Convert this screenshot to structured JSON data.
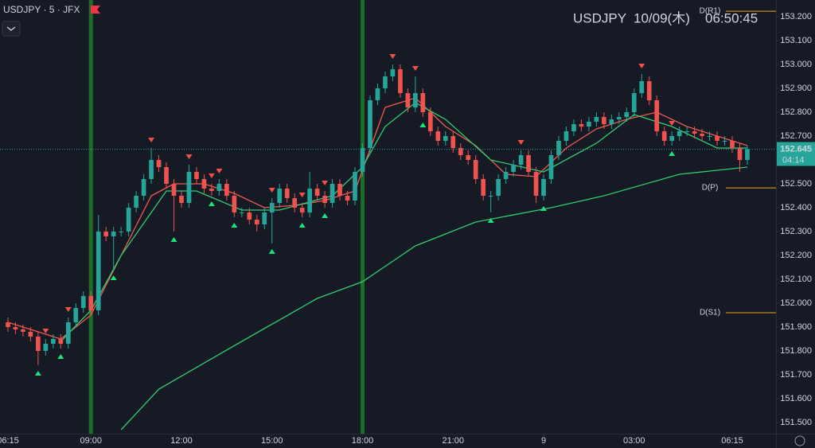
{
  "chart_data": {
    "type": "candlestick",
    "title": "USDJPY · 5 · JFX",
    "header": {
      "symbol": "USDJPY",
      "date": "10/09(木)",
      "time": "06:50:45"
    },
    "open": [
      151.92,
      151.9,
      151.89,
      151.88,
      151.86,
      151.8,
      151.83,
      151.85,
      151.83,
      151.92,
      151.98,
      152.03,
      151.97,
      152.3,
      152.28,
      152.3,
      152.3,
      152.4,
      152.45,
      152.52,
      152.6,
      152.57,
      152.5,
      152.45,
      152.42,
      152.55,
      152.52,
      152.48,
      152.47,
      152.5,
      152.45,
      152.38,
      152.38,
      152.35,
      152.33,
      152.38,
      152.42,
      152.48,
      152.44,
      152.4,
      152.38,
      152.48,
      152.45,
      152.42,
      152.5,
      152.45,
      152.43,
      152.55,
      152.65,
      152.85,
      152.9,
      152.95,
      152.98,
      152.88,
      152.82,
      152.88,
      152.8,
      152.72,
      152.68,
      152.7,
      152.65,
      152.62,
      152.6,
      152.52,
      152.45,
      152.45,
      152.52,
      152.55,
      152.58,
      152.62,
      152.55,
      152.45,
      152.52,
      152.62,
      152.68,
      152.72,
      152.75,
      152.74,
      152.76,
      152.78,
      152.75,
      152.77,
      152.78,
      152.8,
      152.88,
      152.93,
      152.85,
      152.72,
      152.68,
      152.7,
      152.72,
      152.72,
      152.71,
      152.7,
      152.7,
      152.68,
      152.68,
      152.65,
      152.6
    ],
    "high": [
      151.94,
      151.92,
      151.91,
      151.9,
      151.88,
      151.85,
      151.87,
      151.87,
      151.94,
      152.0,
      152.05,
      152.05,
      152.37,
      152.32,
      152.32,
      152.32,
      152.42,
      152.47,
      152.54,
      152.65,
      152.62,
      152.59,
      152.52,
      152.47,
      152.58,
      152.57,
      152.54,
      152.5,
      152.52,
      152.52,
      152.47,
      152.4,
      152.4,
      152.37,
      152.4,
      152.44,
      152.5,
      152.5,
      152.46,
      152.42,
      152.55,
      152.5,
      152.47,
      152.52,
      152.52,
      152.47,
      152.57,
      152.67,
      152.87,
      152.92,
      152.97,
      153.0,
      153.0,
      152.9,
      152.95,
      152.9,
      152.82,
      152.74,
      152.72,
      152.72,
      152.67,
      152.64,
      152.62,
      152.54,
      152.47,
      152.54,
      152.57,
      152.6,
      152.64,
      152.64,
      152.57,
      152.54,
      152.64,
      152.7,
      152.74,
      152.77,
      152.77,
      152.78,
      152.8,
      152.8,
      152.79,
      152.8,
      152.82,
      152.9,
      152.96,
      152.95,
      152.87,
      152.74,
      152.72,
      152.74,
      152.74,
      152.74,
      152.73,
      152.72,
      152.72,
      152.7,
      152.7,
      152.67,
      152.66
    ],
    "low": [
      151.88,
      151.87,
      151.86,
      151.84,
      151.74,
      151.78,
      151.81,
      151.81,
      151.81,
      151.9,
      151.96,
      151.95,
      151.95,
      152.26,
      152.14,
      152.28,
      152.28,
      152.38,
      152.43,
      152.5,
      152.55,
      152.48,
      152.3,
      152.4,
      152.4,
      152.5,
      152.46,
      152.45,
      152.45,
      152.43,
      152.36,
      152.36,
      152.33,
      152.3,
      152.31,
      152.25,
      152.4,
      152.42,
      152.38,
      152.36,
      152.36,
      152.43,
      152.4,
      152.4,
      152.43,
      152.41,
      152.41,
      152.53,
      152.63,
      152.83,
      152.88,
      152.93,
      152.86,
      152.8,
      152.8,
      152.78,
      152.7,
      152.66,
      152.66,
      152.63,
      152.6,
      152.58,
      152.5,
      152.43,
      152.38,
      152.43,
      152.5,
      152.53,
      152.56,
      152.53,
      152.42,
      152.43,
      152.5,
      152.6,
      152.66,
      152.7,
      152.72,
      152.72,
      152.74,
      152.73,
      152.73,
      152.75,
      152.76,
      152.78,
      152.86,
      152.83,
      152.7,
      152.66,
      152.66,
      152.68,
      152.7,
      152.69,
      152.68,
      152.68,
      152.66,
      152.66,
      152.63,
      152.55,
      152.58
    ],
    "close": [
      151.9,
      151.89,
      151.88,
      151.86,
      151.8,
      151.83,
      151.85,
      151.83,
      151.92,
      151.98,
      152.03,
      151.97,
      152.3,
      152.28,
      152.3,
      152.3,
      152.4,
      152.45,
      152.52,
      152.6,
      152.57,
      152.5,
      152.45,
      152.42,
      152.55,
      152.52,
      152.48,
      152.47,
      152.5,
      152.45,
      152.38,
      152.38,
      152.35,
      152.33,
      152.38,
      152.42,
      152.48,
      152.44,
      152.4,
      152.38,
      152.48,
      152.45,
      152.42,
      152.5,
      152.45,
      152.43,
      152.55,
      152.65,
      152.85,
      152.9,
      152.95,
      152.98,
      152.88,
      152.82,
      152.88,
      152.8,
      152.72,
      152.68,
      152.7,
      152.65,
      152.62,
      152.6,
      152.52,
      152.45,
      152.45,
      152.52,
      152.55,
      152.58,
      152.62,
      152.55,
      152.45,
      152.52,
      152.62,
      152.68,
      152.72,
      152.75,
      152.74,
      152.76,
      152.78,
      152.75,
      152.77,
      152.78,
      152.8,
      152.88,
      152.93,
      152.85,
      152.72,
      152.68,
      152.7,
      152.72,
      152.72,
      152.71,
      152.7,
      152.7,
      152.68,
      152.68,
      152.65,
      152.6,
      152.645
    ],
    "up_color": "#26a69a",
    "down_color": "#ef5350",
    "series": [
      {
        "color": "#f05a50",
        "x": [
          0,
          4,
          7,
          11,
          15,
          19,
          22,
          26,
          30,
          34,
          38,
          42,
          46,
          50,
          54,
          58,
          62,
          66,
          70,
          74,
          78,
          82,
          86,
          90,
          94,
          98
        ],
        "values": [
          151.92,
          151.88,
          151.85,
          151.95,
          152.2,
          152.45,
          152.5,
          152.5,
          152.46,
          152.4,
          152.41,
          152.43,
          152.47,
          152.82,
          152.86,
          152.74,
          152.66,
          152.54,
          152.53,
          152.65,
          152.73,
          152.77,
          152.8,
          152.74,
          152.7,
          152.66
        ]
      },
      {
        "color": "#2ecc71",
        "x": [
          7,
          11,
          15,
          21,
          25,
          31,
          36,
          43,
          47,
          50,
          54,
          58,
          64,
          71,
          78,
          83,
          88,
          94,
          98
        ],
        "values": [
          151.84,
          151.97,
          152.2,
          152.47,
          152.47,
          152.39,
          152.39,
          152.45,
          152.57,
          152.74,
          152.84,
          152.77,
          152.6,
          152.55,
          152.67,
          152.79,
          152.74,
          152.65,
          152.65
        ]
      },
      {
        "color": "#2ecc71",
        "x": [
          15,
          20,
          31,
          41,
          47,
          54,
          62,
          72,
          79,
          89,
          98
        ],
        "values": [
          151.47,
          151.64,
          151.84,
          152.02,
          152.09,
          152.24,
          152.34,
          152.4,
          152.45,
          152.54,
          152.57
        ]
      }
    ],
    "signals_down": [
      5,
      8,
      19,
      24,
      27,
      28,
      35,
      39,
      42,
      51,
      54,
      68,
      84,
      88
    ],
    "signals_up": [
      4,
      7,
      14,
      22,
      27,
      30,
      35,
      39,
      42,
      55,
      64,
      71,
      88
    ],
    "signal_up_color": "#1de27a",
    "signal_down_color": "#f0504a",
    "session_lines": [
      11,
      47
    ],
    "session_color": "#1b6e24",
    "levels": [
      {
        "label": "D(R1)",
        "value": 153.223
      },
      {
        "label": "D(P)",
        "value": 152.483
      },
      {
        "label": "D(S1)",
        "value": 151.96
      }
    ],
    "level_color": "#f0a020",
    "last_price": {
      "value": 152.645,
      "countdown": "04:14"
    },
    "xlim": [
      -1.05,
      101.8
    ],
    "xticks": [
      {
        "value": 0,
        "label": "06:15"
      },
      {
        "value": 11,
        "label": "09:00"
      },
      {
        "value": 23,
        "label": "12:00"
      },
      {
        "value": 35,
        "label": "15:00"
      },
      {
        "value": 47,
        "label": "18:00"
      },
      {
        "value": 59,
        "label": "21:00"
      },
      {
        "value": 71,
        "label": "9"
      },
      {
        "value": 83,
        "label": "03:00"
      },
      {
        "value": 96,
        "label": "06:15"
      }
    ],
    "ylim": [
      151.47,
      153.27
    ],
    "yticks": [
      {
        "value": 151.5,
        "label": "151.500"
      },
      {
        "value": 151.6,
        "label": "151.600"
      },
      {
        "value": 151.7,
        "label": "151.700"
      },
      {
        "value": 151.8,
        "label": "151.800"
      },
      {
        "value": 151.9,
        "label": "151.900"
      },
      {
        "value": 152.0,
        "label": "152.000"
      },
      {
        "value": 152.1,
        "label": "152.100"
      },
      {
        "value": 152.2,
        "label": "152.200"
      },
      {
        "value": 152.3,
        "label": "152.300"
      },
      {
        "value": 152.4,
        "label": "152.400"
      },
      {
        "value": 152.5,
        "label": "152.500"
      },
      {
        "value": 152.6,
        "label": "152.600"
      },
      {
        "value": 152.7,
        "label": "152.700"
      },
      {
        "value": 152.8,
        "label": "152.800"
      },
      {
        "value": 152.9,
        "label": "152.900"
      },
      {
        "value": 153.0,
        "label": "153.000"
      },
      {
        "value": 153.1,
        "label": "153.100"
      },
      {
        "value": 153.2,
        "label": "153.200"
      }
    ]
  }
}
